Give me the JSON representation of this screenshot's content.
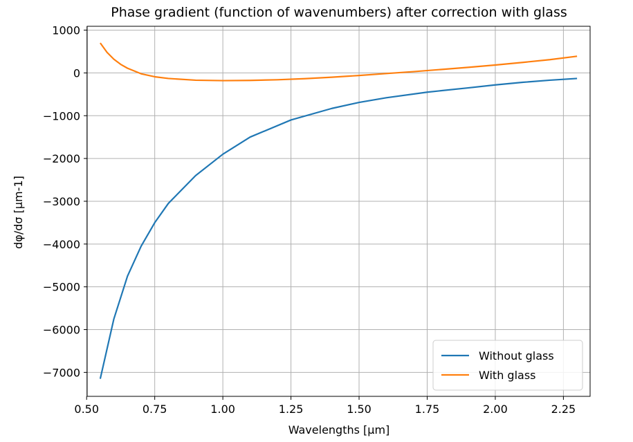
{
  "chart_data": {
    "type": "line",
    "title": "Phase gradient (function of wavenumbers) after correction with glass",
    "xlabel": "Wavelengths [µm]",
    "ylabel": "dφ/dσ [µm-1]",
    "xlim": [
      0.502,
      2.348
    ],
    "ylim": [
      -7560,
      1090
    ],
    "grid": true,
    "legend_position": "lower-right",
    "xticks": [
      0.5,
      0.75,
      1.0,
      1.25,
      1.5,
      1.75,
      2.0,
      2.25
    ],
    "xtick_labels": [
      "0.50",
      "0.75",
      "1.00",
      "1.25",
      "1.50",
      "1.75",
      "2.00",
      "2.25"
    ],
    "yticks": [
      1000,
      0,
      -1000,
      -2000,
      -3000,
      -4000,
      -5000,
      -6000,
      -7000
    ],
    "ytick_labels": [
      "1000",
      "0",
      "−1000",
      "−2000",
      "−3000",
      "−4000",
      "−5000",
      "−6000",
      "−7000"
    ],
    "series": [
      {
        "name": "Without glass",
        "color": "#1f77b4",
        "x": [
          0.55,
          0.6,
          0.65,
          0.7,
          0.75,
          0.8,
          0.9,
          1.0,
          1.1,
          1.25,
          1.4,
          1.5,
          1.6,
          1.75,
          1.9,
          2.0,
          2.1,
          2.2,
          2.3
        ],
        "y": [
          -7150,
          -5750,
          -4750,
          -4050,
          -3500,
          -3050,
          -2400,
          -1900,
          -1500,
          -1100,
          -830,
          -690,
          -580,
          -450,
          -350,
          -280,
          -220,
          -170,
          -130
        ]
      },
      {
        "name": "With glass",
        "color": "#ff7f0e",
        "x": [
          0.55,
          0.575,
          0.6,
          0.625,
          0.65,
          0.7,
          0.75,
          0.8,
          0.9,
          1.0,
          1.1,
          1.2,
          1.3,
          1.4,
          1.5,
          1.6,
          1.7,
          1.8,
          1.9,
          2.0,
          2.1,
          2.2,
          2.3
        ],
        "y": [
          700,
          480,
          320,
          200,
          110,
          -20,
          -90,
          -130,
          -170,
          -180,
          -175,
          -160,
          -135,
          -100,
          -60,
          -15,
          30,
          80,
          130,
          185,
          245,
          310,
          390
        ]
      }
    ]
  }
}
